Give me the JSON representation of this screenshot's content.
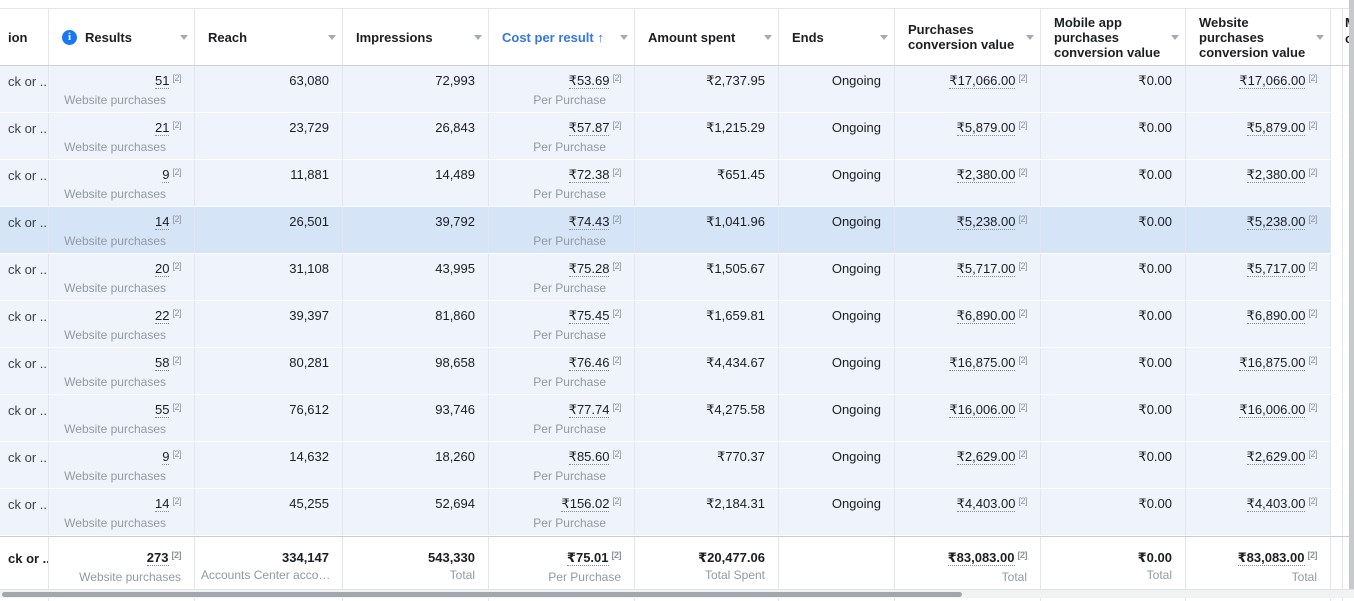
{
  "colors": {
    "accent_blue": "#3578e5",
    "info_icon_blue": "#1877f2",
    "row_background": "#eff3fb",
    "highlighted_row_background": "#d5e4f7",
    "subtext_gray": "#9299a3"
  },
  "header": {
    "attribution_partial_label": "ion",
    "columns": [
      {
        "key": "results",
        "label": "Results",
        "info_icon": true,
        "caret": true
      },
      {
        "key": "reach",
        "label": "Reach",
        "caret": true
      },
      {
        "key": "impressions",
        "label": "Impressions",
        "caret": true
      },
      {
        "key": "cost_per_result",
        "label": "Cost per result",
        "sort_arrow": "↑",
        "sorted": true,
        "caret": true
      },
      {
        "key": "amount_spent",
        "label": "Amount spent",
        "caret": true
      },
      {
        "key": "ends",
        "label": "Ends",
        "caret": true
      },
      {
        "key": "purchases_conversion_value",
        "label": "Purchases conversion value",
        "caret": true
      },
      {
        "key": "mobile_app_purchases_conversion_value",
        "label": "Mobile app purchases conversion value",
        "caret": true
      },
      {
        "key": "website_purchases_conversion_value",
        "label": "Website purchases conversion value",
        "caret": true
      }
    ],
    "next_column_partial_lines": [
      "M",
      "c"
    ]
  },
  "rows": [
    {
      "attribution": "ck or ...",
      "highlighted": false,
      "results": "51",
      "results_ref": "[2]",
      "results_sub": "Website purchases",
      "reach": "63,080",
      "impressions": "72,993",
      "cost": "₹53.69",
      "cost_ref": "[2]",
      "cost_sub": "Per Purchase",
      "amount": "₹2,737.95",
      "ends": "Ongoing",
      "purchases": "₹17,066.00",
      "purchases_ref": "[2]",
      "mobile": "₹0.00",
      "website": "₹17,066.00",
      "website_ref": "[2]"
    },
    {
      "attribution": "ck or ...",
      "highlighted": false,
      "results": "21",
      "results_ref": "[2]",
      "results_sub": "Website purchases",
      "reach": "23,729",
      "impressions": "26,843",
      "cost": "₹57.87",
      "cost_ref": "[2]",
      "cost_sub": "Per Purchase",
      "amount": "₹1,215.29",
      "ends": "Ongoing",
      "purchases": "₹5,879.00",
      "purchases_ref": "[2]",
      "mobile": "₹0.00",
      "website": "₹5,879.00",
      "website_ref": "[2]"
    },
    {
      "attribution": "ck or ...",
      "highlighted": false,
      "results": "9",
      "results_ref": "[2]",
      "results_sub": "Website purchases",
      "reach": "11,881",
      "impressions": "14,489",
      "cost": "₹72.38",
      "cost_ref": "[2]",
      "cost_sub": "Per Purchase",
      "amount": "₹651.45",
      "ends": "Ongoing",
      "purchases": "₹2,380.00",
      "purchases_ref": "[2]",
      "mobile": "₹0.00",
      "website": "₹2,380.00",
      "website_ref": "[2]"
    },
    {
      "attribution": "ck or ...",
      "highlighted": true,
      "results": "14",
      "results_ref": "[2]",
      "results_sub": "Website purchases",
      "reach": "26,501",
      "impressions": "39,792",
      "cost": "₹74.43",
      "cost_ref": "[2]",
      "cost_sub": "Per Purchase",
      "amount": "₹1,041.96",
      "ends": "Ongoing",
      "purchases": "₹5,238.00",
      "purchases_ref": "[2]",
      "mobile": "₹0.00",
      "website": "₹5,238.00",
      "website_ref": "[2]"
    },
    {
      "attribution": "ck or ...",
      "highlighted": false,
      "results": "20",
      "results_ref": "[2]",
      "results_sub": "Website purchases",
      "reach": "31,108",
      "impressions": "43,995",
      "cost": "₹75.28",
      "cost_ref": "[2]",
      "cost_sub": "Per Purchase",
      "amount": "₹1,505.67",
      "ends": "Ongoing",
      "purchases": "₹5,717.00",
      "purchases_ref": "[2]",
      "mobile": "₹0.00",
      "website": "₹5,717.00",
      "website_ref": "[2]"
    },
    {
      "attribution": "ck or ...",
      "highlighted": false,
      "results": "22",
      "results_ref": "[2]",
      "results_sub": "Website purchases",
      "reach": "39,397",
      "impressions": "81,860",
      "cost": "₹75.45",
      "cost_ref": "[2]",
      "cost_sub": "Per Purchase",
      "amount": "₹1,659.81",
      "ends": "Ongoing",
      "purchases": "₹6,890.00",
      "purchases_ref": "[2]",
      "mobile": "₹0.00",
      "website": "₹6,890.00",
      "website_ref": "[2]"
    },
    {
      "attribution": "ck or ...",
      "highlighted": false,
      "results": "58",
      "results_ref": "[2]",
      "results_sub": "Website purchases",
      "reach": "80,281",
      "impressions": "98,658",
      "cost": "₹76.46",
      "cost_ref": "[2]",
      "cost_sub": "Per Purchase",
      "amount": "₹4,434.67",
      "ends": "Ongoing",
      "purchases": "₹16,875.00",
      "purchases_ref": "[2]",
      "mobile": "₹0.00",
      "website": "₹16,875.00",
      "website_ref": "[2]"
    },
    {
      "attribution": "ck or ...",
      "highlighted": false,
      "results": "55",
      "results_ref": "[2]",
      "results_sub": "Website purchases",
      "reach": "76,612",
      "impressions": "93,746",
      "cost": "₹77.74",
      "cost_ref": "[2]",
      "cost_sub": "Per Purchase",
      "amount": "₹4,275.58",
      "ends": "Ongoing",
      "purchases": "₹16,006.00",
      "purchases_ref": "[2]",
      "mobile": "₹0.00",
      "website": "₹16,006.00",
      "website_ref": "[2]"
    },
    {
      "attribution": "ck or ...",
      "highlighted": false,
      "results": "9",
      "results_ref": "[2]",
      "results_sub": "Website purchases",
      "reach": "14,632",
      "impressions": "18,260",
      "cost": "₹85.60",
      "cost_ref": "[2]",
      "cost_sub": "Per Purchase",
      "amount": "₹770.37",
      "ends": "Ongoing",
      "purchases": "₹2,629.00",
      "purchases_ref": "[2]",
      "mobile": "₹0.00",
      "website": "₹2,629.00",
      "website_ref": "[2]"
    },
    {
      "attribution": "ck or ...",
      "highlighted": false,
      "results": "14",
      "results_ref": "[2]",
      "results_sub": "Website purchases",
      "reach": "45,255",
      "impressions": "52,694",
      "cost": "₹156.02",
      "cost_ref": "[2]",
      "cost_sub": "Per Purchase",
      "amount": "₹2,184.31",
      "ends": "Ongoing",
      "purchases": "₹4,403.00",
      "purchases_ref": "[2]",
      "mobile": "₹0.00",
      "website": "₹4,403.00",
      "website_ref": "[2]"
    }
  ],
  "footer": {
    "attribution": "ck or ...",
    "results": "273",
    "results_ref": "[2]",
    "results_sub": "Website purchases",
    "reach": "334,147",
    "reach_sub": "Accounts Center acco…",
    "impressions": "543,330",
    "impressions_sub": "Total",
    "cost": "₹75.01",
    "cost_ref": "[2]",
    "cost_sub": "Per Purchase",
    "amount": "₹20,477.06",
    "amount_sub": "Total Spent",
    "ends": "",
    "purchases": "₹83,083.00",
    "purchases_ref": "[2]",
    "purchases_sub": "Total",
    "mobile": "₹0.00",
    "mobile_sub": "Total",
    "website": "₹83,083.00",
    "website_ref": "[2]",
    "website_sub": "Total"
  }
}
